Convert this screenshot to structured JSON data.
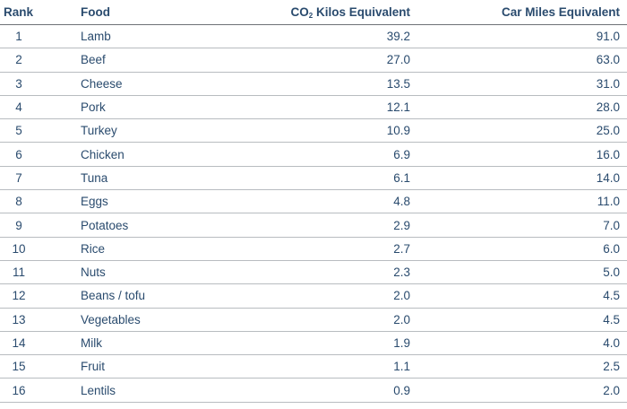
{
  "table": {
    "headers": {
      "rank": "Rank",
      "food": "Food",
      "co2_prefix": "CO",
      "co2_sub": "2",
      "co2_suffix": " Kilos Equivalent",
      "car": "Car Miles Equivalent"
    },
    "rows": [
      {
        "rank": "1",
        "food": "Lamb",
        "co2": "39.2",
        "car": "91.0"
      },
      {
        "rank": "2",
        "food": "Beef",
        "co2": "27.0",
        "car": "63.0"
      },
      {
        "rank": "3",
        "food": "Cheese",
        "co2": "13.5",
        "car": "31.0"
      },
      {
        "rank": "4",
        "food": "Pork",
        "co2": "12.1",
        "car": "28.0"
      },
      {
        "rank": "5",
        "food": "Turkey",
        "co2": "10.9",
        "car": "25.0"
      },
      {
        "rank": "6",
        "food": "Chicken",
        "co2": "6.9",
        "car": "16.0"
      },
      {
        "rank": "7",
        "food": "Tuna",
        "co2": "6.1",
        "car": "14.0"
      },
      {
        "rank": "8",
        "food": "Eggs",
        "co2": "4.8",
        "car": "11.0"
      },
      {
        "rank": "9",
        "food": "Potatoes",
        "co2": "2.9",
        "car": "7.0"
      },
      {
        "rank": "10",
        "food": "Rice",
        "co2": "2.7",
        "car": "6.0"
      },
      {
        "rank": "11",
        "food": "Nuts",
        "co2": "2.3",
        "car": "5.0"
      },
      {
        "rank": "12",
        "food": "Beans / tofu",
        "co2": "2.0",
        "car": "4.5"
      },
      {
        "rank": "13",
        "food": "Vegetables",
        "co2": "2.0",
        "car": "4.5"
      },
      {
        "rank": "14",
        "food": "Milk",
        "co2": "1.9",
        "car": "4.0"
      },
      {
        "rank": "15",
        "food": "Fruit",
        "co2": "1.1",
        "car": "2.5"
      },
      {
        "rank": "16",
        "food": "Lentils",
        "co2": "0.9",
        "car": "2.0"
      }
    ]
  }
}
